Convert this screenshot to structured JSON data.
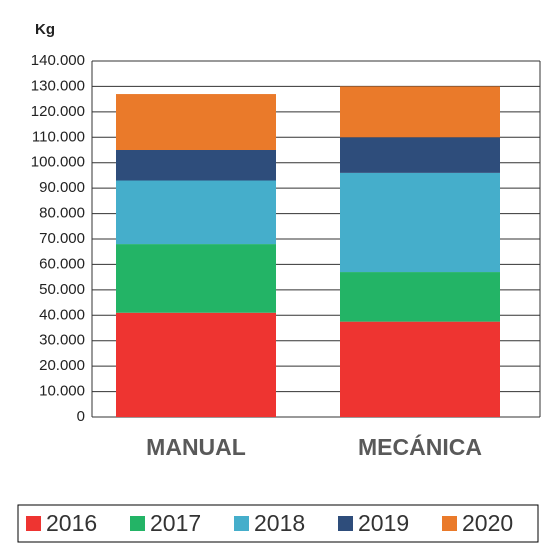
{
  "chart_data": {
    "type": "bar",
    "stacked": true,
    "ylabel": "Kg",
    "categories": [
      "MANUAL",
      "MECÁNICA"
    ],
    "series": [
      {
        "name": "2016",
        "color": "#ee3431",
        "values": [
          41000,
          37500
        ]
      },
      {
        "name": "2017",
        "color": "#23b466",
        "values": [
          27000,
          19500
        ]
      },
      {
        "name": "2018",
        "color": "#45aecb",
        "values": [
          25000,
          39000
        ]
      },
      {
        "name": "2019",
        "color": "#2e4d7b",
        "values": [
          12000,
          14000
        ]
      },
      {
        "name": "2020",
        "color": "#ea7a2a",
        "values": [
          22000,
          20000
        ]
      }
    ],
    "ylim": [
      0,
      140000
    ],
    "yticks": [
      0,
      {
        "value": 10000,
        "label": "10.000"
      },
      {
        "value": 20000,
        "label": "20.000"
      },
      {
        "value": 30000,
        "label": "30.000"
      },
      {
        "value": 40000,
        "label": "40.000"
      },
      {
        "value": 50000,
        "label": "50.000"
      },
      {
        "value": 60000,
        "label": "60.000"
      },
      {
        "value": 70000,
        "label": "70.000"
      },
      {
        "value": 80000,
        "label": "80.000"
      },
      {
        "value": 90000,
        "label": "90.000"
      },
      {
        "value": 100000,
        "label": "100.000"
      },
      {
        "value": 110000,
        "label": "110.000"
      },
      {
        "value": 120000,
        "label": "120.000"
      },
      {
        "value": 130000,
        "label": "130.000"
      },
      {
        "value": 140000,
        "label": "140.000"
      }
    ],
    "grid": true,
    "legend": "bottom"
  }
}
